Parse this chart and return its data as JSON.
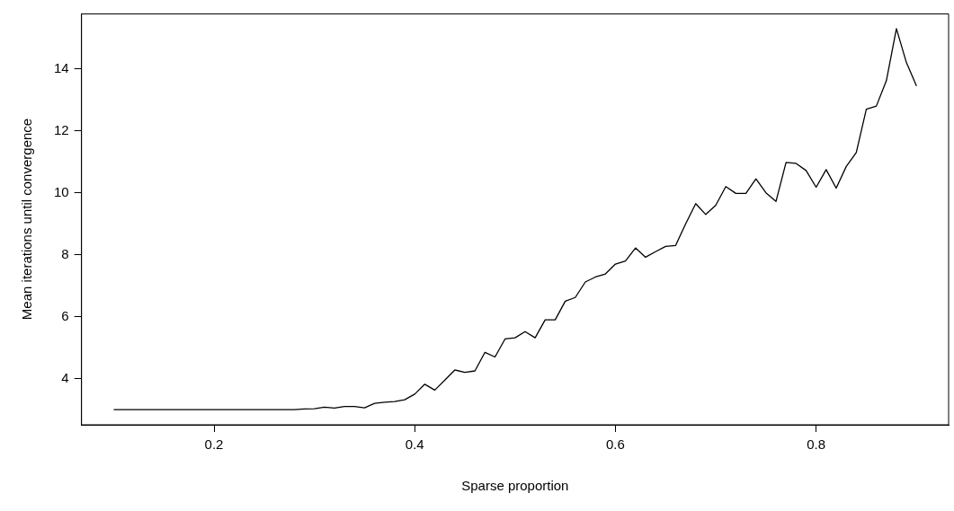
{
  "chart_data": {
    "type": "line",
    "xlabel": "Sparse proportion",
    "ylabel": "Mean iterations until convergence",
    "x": [
      0.1,
      0.11,
      0.12,
      0.13,
      0.14,
      0.15,
      0.16,
      0.17,
      0.18,
      0.19,
      0.2,
      0.21,
      0.22,
      0.23,
      0.24,
      0.25,
      0.26,
      0.27,
      0.28,
      0.29,
      0.3,
      0.31,
      0.32,
      0.33,
      0.34,
      0.35,
      0.36,
      0.37,
      0.38,
      0.39,
      0.4,
      0.41,
      0.42,
      0.43,
      0.44,
      0.45,
      0.46,
      0.47,
      0.48,
      0.49,
      0.5,
      0.51,
      0.52,
      0.53,
      0.54,
      0.55,
      0.56,
      0.57,
      0.58,
      0.59,
      0.6,
      0.61,
      0.62,
      0.63,
      0.64,
      0.65,
      0.66,
      0.67,
      0.68,
      0.69,
      0.7,
      0.71,
      0.72,
      0.73,
      0.74,
      0.75,
      0.76,
      0.77,
      0.78,
      0.79,
      0.8,
      0.81,
      0.82,
      0.83,
      0.84,
      0.85,
      0.86,
      0.87,
      0.88,
      0.89,
      0.9
    ],
    "series": [
      {
        "color": "#000000",
        "values": [
          3.0,
          3.0,
          3.0,
          3.0,
          3.0,
          3.0,
          3.0,
          3.0,
          3.0,
          3.0,
          3.0,
          3.0,
          3.0,
          3.0,
          3.0,
          3.0,
          3.0,
          3.0,
          3.0,
          3.02,
          3.03,
          3.08,
          3.05,
          3.1,
          3.1,
          3.06,
          3.2,
          3.24,
          3.26,
          3.32,
          3.5,
          3.82,
          3.63,
          3.95,
          4.28,
          4.2,
          4.25,
          4.85,
          4.7,
          5.28,
          5.32,
          5.52,
          5.32,
          5.9,
          5.9,
          6.5,
          6.62,
          7.12,
          7.28,
          7.38,
          7.7,
          7.8,
          8.22,
          7.92,
          8.1,
          8.27,
          8.3,
          9.0,
          9.65,
          9.3,
          9.6,
          10.2,
          9.98,
          9.98,
          10.45,
          10.0,
          9.72,
          10.98,
          10.95,
          10.72,
          10.18,
          10.75,
          10.15,
          10.85,
          11.3,
          12.7,
          12.8,
          13.62,
          15.3,
          14.2,
          13.45
        ]
      }
    ],
    "xlim": [
      0.068,
      0.932
    ],
    "ylim": [
      2.51,
      15.79
    ],
    "xticks": [
      {
        "value": 0.2,
        "label": "0.2"
      },
      {
        "value": 0.4,
        "label": "0.4"
      },
      {
        "value": 0.6,
        "label": "0.6"
      },
      {
        "value": 0.8,
        "label": "0.8"
      }
    ],
    "yticks": [
      4,
      6,
      8,
      10,
      12,
      14
    ],
    "grid": false,
    "legend": false,
    "marker": "none",
    "line_style": "solid"
  }
}
